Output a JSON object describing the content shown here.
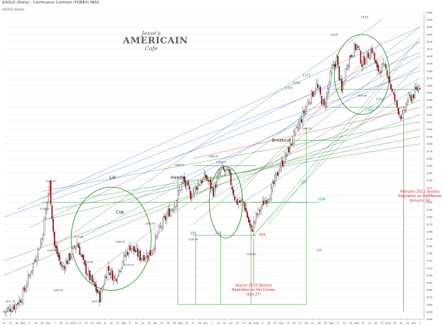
{
  "header": {
    "title": "$GOLD (Daily) - Continuous Contract (FOREX) INSX",
    "legend": "$GOLD (Daily)"
  },
  "logo": {
    "line1": "Jesse's",
    "line2": "AMERICAIN",
    "line3": "Cafe"
  },
  "colors": {
    "up_candle": "#ffffff",
    "down_candle": "#cc0000",
    "green_line": "#2e8b2e",
    "blue_line": "#4a6fd0",
    "red_line": "#d23030",
    "label_green": "#2e8b2e",
    "label_black": "#111111",
    "label_red": "#cc2222",
    "grid": "#e8e8e8"
  },
  "chart_data": {
    "type": "candlestick",
    "title": "$GOLD (Daily) - Continuous Contract (FOREX) INSX",
    "y_axis": {
      "position": "right",
      "ylim": [
        1040,
        1460
      ],
      "ticks": [
        1040,
        1050,
        1060,
        1070,
        1080,
        1090,
        1100,
        1110,
        1120,
        1130,
        1140,
        1150,
        1160,
        1170,
        1180,
        1190,
        1200,
        1210,
        1220,
        1230,
        1240,
        1250,
        1260,
        1270,
        1280,
        1290,
        1300,
        1310,
        1320,
        1330,
        1340,
        1350,
        1360,
        1370,
        1380,
        1390,
        1400,
        1410,
        1420,
        1430,
        1440,
        1450,
        1460
      ]
    },
    "x_axis": {
      "ticks": [
        {
          "label": "12",
          "t": 0
        },
        {
          "label": "19",
          "t": 5
        },
        {
          "label": "26",
          "t": 10
        },
        {
          "label": "Nov",
          "t": 15
        },
        {
          "label": "9",
          "t": 20
        },
        {
          "label": "16",
          "t": 25
        },
        {
          "label": "23",
          "t": 30
        },
        {
          "label": "Dec",
          "t": 35
        },
        {
          "label": "7",
          "t": 40
        },
        {
          "label": "14",
          "t": 45
        },
        {
          "label": "21",
          "t": 50
        },
        {
          "label": "2010",
          "t": 55
        },
        {
          "label": "11",
          "t": 60
        },
        {
          "label": "19",
          "t": 65
        },
        {
          "label": "25",
          "t": 70
        },
        {
          "label": "Feb",
          "t": 75
        },
        {
          "label": "8",
          "t": 80
        },
        {
          "label": "16",
          "t": 85
        },
        {
          "label": "22",
          "t": 90
        },
        {
          "label": "Mar",
          "t": 95
        },
        {
          "label": "8",
          "t": 100
        },
        {
          "label": "15",
          "t": 105
        },
        {
          "label": "22",
          "t": 110
        },
        {
          "label": "29",
          "t": 115
        },
        {
          "label": "Apr",
          "t": 120
        },
        {
          "label": "12",
          "t": 125
        },
        {
          "label": "19",
          "t": 130
        },
        {
          "label": "26",
          "t": 135
        },
        {
          "label": "May",
          "t": 140
        },
        {
          "label": "10",
          "t": 145
        },
        {
          "label": "17",
          "t": 150
        },
        {
          "label": "24",
          "t": 155
        },
        {
          "label": "Jun",
          "t": 160
        },
        {
          "label": "7",
          "t": 165
        },
        {
          "label": "14",
          "t": 170
        },
        {
          "label": "21",
          "t": 175
        },
        {
          "label": "Jul",
          "t": 180
        },
        {
          "label": "12",
          "t": 185
        },
        {
          "label": "19",
          "t": 190
        },
        {
          "label": "26",
          "t": 195
        },
        {
          "label": "Aug",
          "t": 200
        },
        {
          "label": "9",
          "t": 205
        },
        {
          "label": "16",
          "t": 210
        },
        {
          "label": "23",
          "t": 215
        },
        {
          "label": "Sep",
          "t": 220
        },
        {
          "label": "13",
          "t": 225
        },
        {
          "label": "20",
          "t": 230
        },
        {
          "label": "27",
          "t": 235
        },
        {
          "label": "Oct",
          "t": 240
        },
        {
          "label": "11",
          "t": 245
        },
        {
          "label": "18",
          "t": 250
        },
        {
          "label": "25",
          "t": 255
        },
        {
          "label": "Nov",
          "t": 260
        },
        {
          "label": "8",
          "t": 265
        },
        {
          "label": "15",
          "t": 270
        },
        {
          "label": "22",
          "t": 275
        },
        {
          "label": "Dec",
          "t": 280
        },
        {
          "label": "6",
          "t": 285
        },
        {
          "label": "13",
          "t": 290
        },
        {
          "label": "20",
          "t": 295
        },
        {
          "label": "27",
          "t": 300
        },
        {
          "label": "2011",
          "t": 305
        },
        {
          "label": "10",
          "t": 310
        },
        {
          "label": "18",
          "t": 315
        },
        {
          "label": "24",
          "t": 320
        },
        {
          "label": "Feb",
          "t": 325
        },
        {
          "label": "7",
          "t": 330
        }
      ]
    },
    "key_closes": [
      {
        "t": 0,
        "c": 1050
      },
      {
        "t": 8,
        "c": 1058
      },
      {
        "t": 14,
        "c": 1070
      },
      {
        "t": 22,
        "c": 1110
      },
      {
        "t": 30,
        "c": 1150
      },
      {
        "t": 34,
        "c": 1200
      },
      {
        "t": 36,
        "c": 1224
      },
      {
        "t": 40,
        "c": 1140
      },
      {
        "t": 46,
        "c": 1110
      },
      {
        "t": 52,
        "c": 1125
      },
      {
        "t": 58,
        "c": 1145
      },
      {
        "t": 64,
        "c": 1110
      },
      {
        "t": 70,
        "c": 1090
      },
      {
        "t": 76,
        "c": 1070
      },
      {
        "t": 82,
        "c": 1110
      },
      {
        "t": 88,
        "c": 1095
      },
      {
        "t": 94,
        "c": 1120
      },
      {
        "t": 100,
        "c": 1140
      },
      {
        "t": 108,
        "c": 1125
      },
      {
        "t": 116,
        "c": 1130
      },
      {
        "t": 124,
        "c": 1165
      },
      {
        "t": 130,
        "c": 1185
      },
      {
        "t": 136,
        "c": 1200
      },
      {
        "t": 142,
        "c": 1230
      },
      {
        "t": 148,
        "c": 1210
      },
      {
        "t": 154,
        "c": 1225
      },
      {
        "t": 160,
        "c": 1235
      },
      {
        "t": 166,
        "c": 1215
      },
      {
        "t": 172,
        "c": 1245
      },
      {
        "t": 178,
        "c": 1240
      },
      {
        "t": 184,
        "c": 1200
      },
      {
        "t": 190,
        "c": 1200
      },
      {
        "t": 196,
        "c": 1160
      },
      {
        "t": 200,
        "c": 1180
      },
      {
        "t": 206,
        "c": 1200
      },
      {
        "t": 212,
        "c": 1215
      },
      {
        "t": 218,
        "c": 1245
      },
      {
        "t": 224,
        "c": 1265
      },
      {
        "t": 230,
        "c": 1290
      },
      {
        "t": 236,
        "c": 1315
      },
      {
        "t": 242,
        "c": 1340
      },
      {
        "t": 248,
        "c": 1360
      },
      {
        "t": 254,
        "c": 1330
      },
      {
        "t": 260,
        "c": 1380
      },
      {
        "t": 264,
        "c": 1395
      },
      {
        "t": 268,
        "c": 1350
      },
      {
        "t": 272,
        "c": 1390
      },
      {
        "t": 276,
        "c": 1405
      },
      {
        "t": 280,
        "c": 1415
      },
      {
        "t": 284,
        "c": 1390
      },
      {
        "t": 288,
        "c": 1400
      },
      {
        "t": 292,
        "c": 1410
      },
      {
        "t": 296,
        "c": 1380
      },
      {
        "t": 300,
        "c": 1385
      },
      {
        "t": 304,
        "c": 1380
      },
      {
        "t": 308,
        "c": 1350
      },
      {
        "t": 312,
        "c": 1330
      },
      {
        "t": 316,
        "c": 1315
      },
      {
        "t": 320,
        "c": 1340
      },
      {
        "t": 324,
        "c": 1345
      },
      {
        "t": 330,
        "c": 1360
      }
    ],
    "price_labels": [
      {
        "text": "1071.70",
        "t": 5,
        "v": 1063
      },
      {
        "text": "1226.40",
        "t": 37,
        "v": 1228
      },
      {
        "text": "1190.20",
        "t": 32,
        "v": 1190
      },
      {
        "text": "1128.30",
        "t": 38,
        "v": 1133
      },
      {
        "text": "1075.75",
        "t": 43,
        "v": 1078
      },
      {
        "text": "1113.80",
        "t": 59,
        "v": 1152
      },
      {
        "text": "1124.00",
        "t": 67,
        "v": 1117
      },
      {
        "text": "1045.30",
        "t": 73,
        "v": 1063
      },
      {
        "text": "1144.00",
        "t": 92,
        "v": 1145
      },
      {
        "text": "1124.20",
        "t": 99,
        "v": 1113
      },
      {
        "text": "1165.70",
        "t": 116,
        "v": 1170
      },
      {
        "text": "1249.30",
        "t": 139,
        "v": 1250
      },
      {
        "text": "1155.90",
        "t": 150,
        "v": 1148
      },
      {
        "text": "1265.00",
        "t": 166,
        "v": 1262
      },
      {
        "text": "1257.20",
        "t": 172,
        "v": 1254
      },
      {
        "text": "1131.00",
        "t": 196,
        "v": 1128
      },
      {
        "text": "1288.15",
        "t": 240,
        "v": 1300
      },
      {
        "text": "1350.50",
        "t": 284,
        "v": 1345
      }
    ],
    "annotations": [
      {
        "text": "Lid",
        "t": 86,
        "v": 1232,
        "color": "label_black"
      },
      {
        "text": "Handle",
        "t": 138,
        "v": 1232,
        "color": "label_black"
      },
      {
        "text": "Cup",
        "t": 92,
        "v": 1185,
        "color": "label_black"
      },
      {
        "text": "Breakout",
        "t": 220,
        "v": 1283,
        "color": "label_black"
      },
      {
        "text": "1200",
        "t": 252,
        "v": 1203,
        "color": "label_green"
      },
      {
        "text": "205",
        "t": 150,
        "v": 1156,
        "color": "label_green"
      },
      {
        "text": "220",
        "t": 170,
        "v": 1156,
        "color": "label_green"
      },
      {
        "text": "155",
        "t": 238,
        "v": 1226,
        "color": "label_green"
      },
      {
        "text": "155",
        "t": 250,
        "v": 1133,
        "color": "label_green"
      },
      {
        "text": "1343",
        "t": 298,
        "v": 1340,
        "color": "label_green"
      },
      {
        "text": "1320",
        "t": 290,
        "v": 1325,
        "color": "label_green"
      },
      {
        "text": "1355",
        "t": 226,
        "v": 1355,
        "color": "label_green"
      },
      {
        "text": "1364",
        "t": 232,
        "v": 1362,
        "color": "label_green"
      },
      {
        "text": "1375",
        "t": 240,
        "v": 1372,
        "color": "label_green"
      },
      {
        "text": "1425",
        "t": 262,
        "v": 1428,
        "color": "label_green"
      },
      {
        "text": "1455",
        "t": 286,
        "v": 1452,
        "color": "label_green"
      },
      {
        "text": "RRS",
        "t": 205,
        "v": 1154,
        "color": "label_red"
      }
    ],
    "callouts": [
      {
        "lines": [
          "August 2010 Options",
          "Expiration on the Comex",
          "(July 27)"
        ],
        "t": 198,
        "v": 1085,
        "color": "label_red"
      },
      {
        "lines": [
          "February 2011 Options",
          "Expiration on the Comex",
          "(January 26)"
        ],
        "t": 330,
        "v": 1213,
        "color": "label_red"
      }
    ]
  }
}
